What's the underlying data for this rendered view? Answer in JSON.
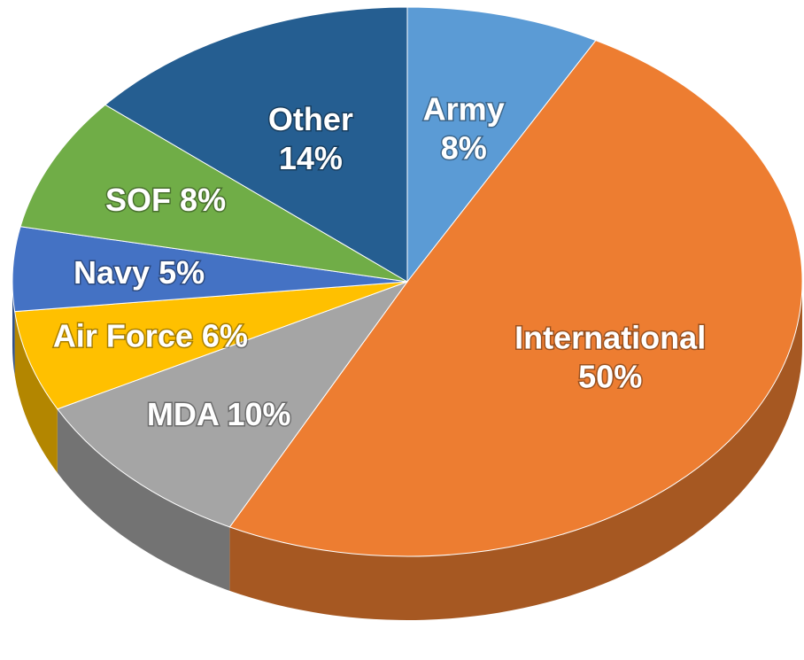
{
  "chart_data": {
    "type": "pie",
    "categories": [
      "Army",
      "International",
      "MDA",
      "Air Force",
      "Navy",
      "SOF",
      "Other"
    ],
    "values": [
      8,
      50,
      10,
      6,
      5,
      8,
      14
    ],
    "value_labels": [
      "8%",
      "50%",
      "10%",
      "6%",
      "5%",
      "8%",
      "14%"
    ],
    "colors": [
      "#5b9bd5",
      "#ed7d31",
      "#a5a5a5",
      "#ffc000",
      "#4472c4",
      "#70ad47",
      "#255e91"
    ],
    "three_d": true
  }
}
